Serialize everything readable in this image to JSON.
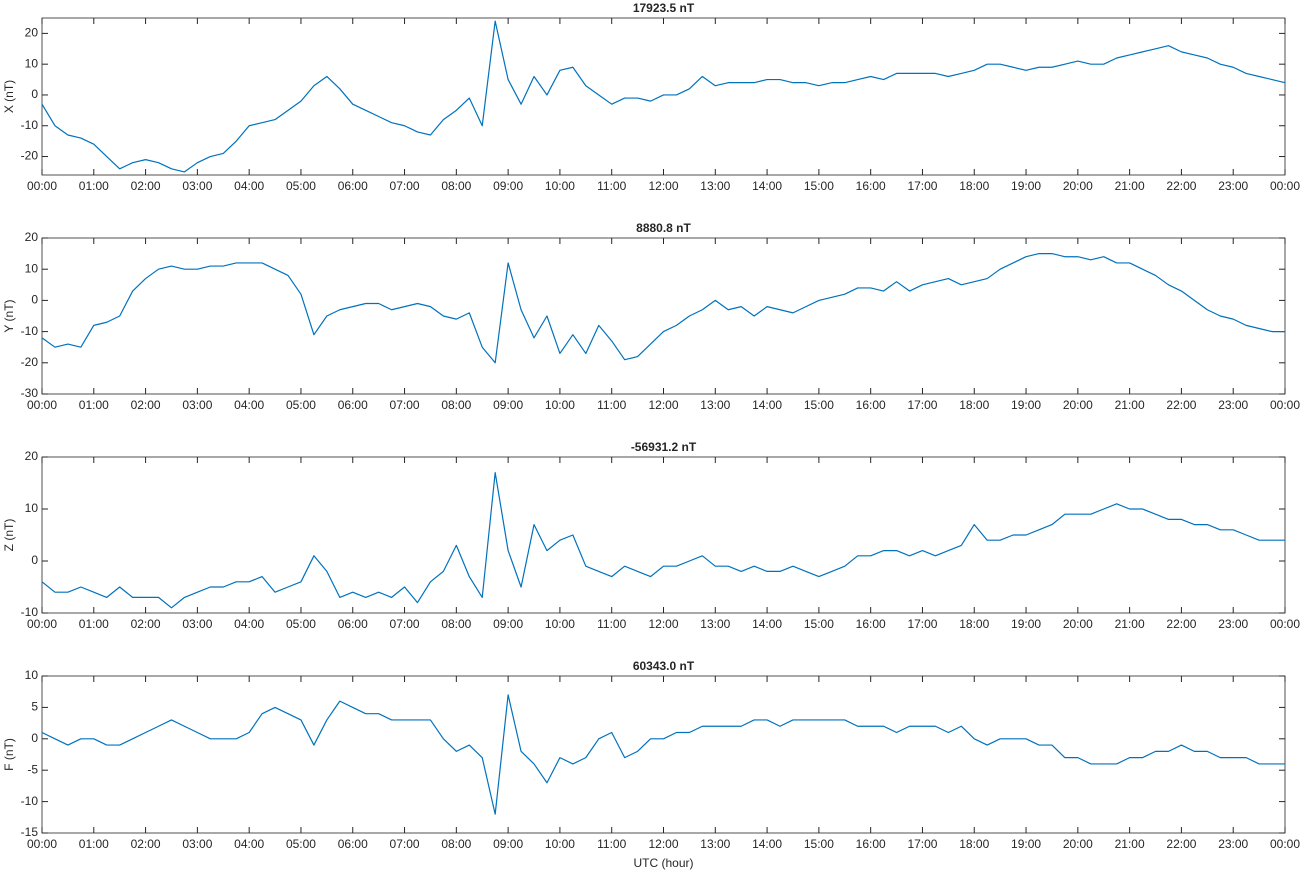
{
  "chart_data": [
    {
      "type": "line",
      "title": "17923.5 nT",
      "ylabel": "X (nT)",
      "color": "#0072bd",
      "xlim": [
        0,
        24
      ],
      "ylim": [
        -26,
        25
      ],
      "yticks": [
        -20,
        -10,
        0,
        10,
        20
      ],
      "xticks": [
        {
          "value": 0,
          "label": "00:00"
        },
        {
          "value": 1,
          "label": "01:00"
        },
        {
          "value": 2,
          "label": "02:00"
        },
        {
          "value": 3,
          "label": "03:00"
        },
        {
          "value": 4,
          "label": "04:00"
        },
        {
          "value": 5,
          "label": "05:00"
        },
        {
          "value": 6,
          "label": "06:00"
        },
        {
          "value": 7,
          "label": "07:00"
        },
        {
          "value": 8,
          "label": "08:00"
        },
        {
          "value": 9,
          "label": "09:00"
        },
        {
          "value": 10,
          "label": "10:00"
        },
        {
          "value": 11,
          "label": "11:00"
        },
        {
          "value": 12,
          "label": "12:00"
        },
        {
          "value": 13,
          "label": "13:00"
        },
        {
          "value": 14,
          "label": "14:00"
        },
        {
          "value": 15,
          "label": "15:00"
        },
        {
          "value": 16,
          "label": "16:00"
        },
        {
          "value": 17,
          "label": "17:00"
        },
        {
          "value": 18,
          "label": "18:00"
        },
        {
          "value": 19,
          "label": "19:00"
        },
        {
          "value": 20,
          "label": "20:00"
        },
        {
          "value": 21,
          "label": "21:00"
        },
        {
          "value": 22,
          "label": "22:00"
        },
        {
          "value": 23,
          "label": "23:00"
        },
        {
          "value": 24,
          "label": "00:00"
        }
      ],
      "x": [
        0,
        0.25,
        0.5,
        0.75,
        1,
        1.25,
        1.5,
        1.75,
        2,
        2.25,
        2.5,
        2.75,
        3,
        3.25,
        3.5,
        3.75,
        4,
        4.25,
        4.5,
        4.75,
        5,
        5.25,
        5.5,
        5.75,
        6,
        6.25,
        6.5,
        6.75,
        7,
        7.25,
        7.5,
        7.75,
        8,
        8.25,
        8.5,
        8.75,
        9,
        9.25,
        9.5,
        9.75,
        10,
        10.25,
        10.5,
        10.75,
        11,
        11.25,
        11.5,
        11.75,
        12,
        12.25,
        12.5,
        12.75,
        13,
        13.25,
        13.5,
        13.75,
        14,
        14.25,
        14.5,
        14.75,
        15,
        15.25,
        15.5,
        15.75,
        16,
        16.25,
        16.5,
        16.75,
        17,
        17.25,
        17.5,
        17.75,
        18,
        18.25,
        18.5,
        18.75,
        19,
        19.25,
        19.5,
        19.75,
        20,
        20.25,
        20.5,
        20.75,
        21,
        21.25,
        21.5,
        21.75,
        22,
        22.25,
        22.5,
        22.75,
        23,
        23.25,
        23.5,
        23.75,
        24
      ],
      "values": [
        -3,
        -10,
        -13,
        -14,
        -16,
        -20,
        -24,
        -22,
        -21,
        -22,
        -24,
        -25,
        -22,
        -20,
        -19,
        -15,
        -10,
        -9,
        -8,
        -5,
        -2,
        3,
        6,
        2,
        -3,
        -5,
        -7,
        -9,
        -10,
        -12,
        -13,
        -8,
        -5,
        -1,
        -10,
        24,
        5,
        -3,
        6,
        0,
        8,
        9,
        3,
        0,
        -3,
        -1,
        -1,
        -2,
        0,
        0,
        2,
        6,
        3,
        4,
        4,
        4,
        5,
        5,
        4,
        4,
        3,
        4,
        4,
        5,
        6,
        5,
        7,
        7,
        7,
        7,
        6,
        7,
        8,
        10,
        10,
        9,
        8,
        9,
        9,
        10,
        11,
        10,
        10,
        12,
        13,
        14,
        15,
        16,
        14,
        13,
        12,
        10,
        9,
        7,
        6,
        5,
        4
      ]
    },
    {
      "type": "line",
      "title": "8880.8 nT",
      "ylabel": "Y (nT)",
      "color": "#0072bd",
      "xlim": [
        0,
        24
      ],
      "ylim": [
        -30,
        20
      ],
      "yticks": [
        -30,
        -20,
        -10,
        0,
        10,
        20
      ],
      "xticks": [
        {
          "value": 0,
          "label": "00:00"
        },
        {
          "value": 1,
          "label": "01:00"
        },
        {
          "value": 2,
          "label": "02:00"
        },
        {
          "value": 3,
          "label": "03:00"
        },
        {
          "value": 4,
          "label": "04:00"
        },
        {
          "value": 5,
          "label": "05:00"
        },
        {
          "value": 6,
          "label": "06:00"
        },
        {
          "value": 7,
          "label": "07:00"
        },
        {
          "value": 8,
          "label": "08:00"
        },
        {
          "value": 9,
          "label": "09:00"
        },
        {
          "value": 10,
          "label": "10:00"
        },
        {
          "value": 11,
          "label": "11:00"
        },
        {
          "value": 12,
          "label": "12:00"
        },
        {
          "value": 13,
          "label": "13:00"
        },
        {
          "value": 14,
          "label": "14:00"
        },
        {
          "value": 15,
          "label": "15:00"
        },
        {
          "value": 16,
          "label": "16:00"
        },
        {
          "value": 17,
          "label": "17:00"
        },
        {
          "value": 18,
          "label": "18:00"
        },
        {
          "value": 19,
          "label": "19:00"
        },
        {
          "value": 20,
          "label": "20:00"
        },
        {
          "value": 21,
          "label": "21:00"
        },
        {
          "value": 22,
          "label": "22:00"
        },
        {
          "value": 23,
          "label": "23:00"
        },
        {
          "value": 24,
          "label": "00:00"
        }
      ],
      "x": [
        0,
        0.25,
        0.5,
        0.75,
        1,
        1.25,
        1.5,
        1.75,
        2,
        2.25,
        2.5,
        2.75,
        3,
        3.25,
        3.5,
        3.75,
        4,
        4.25,
        4.5,
        4.75,
        5,
        5.25,
        5.5,
        5.75,
        6,
        6.25,
        6.5,
        6.75,
        7,
        7.25,
        7.5,
        7.75,
        8,
        8.25,
        8.5,
        8.75,
        9,
        9.25,
        9.5,
        9.75,
        10,
        10.25,
        10.5,
        10.75,
        11,
        11.25,
        11.5,
        11.75,
        12,
        12.25,
        12.5,
        12.75,
        13,
        13.25,
        13.5,
        13.75,
        14,
        14.25,
        14.5,
        14.75,
        15,
        15.25,
        15.5,
        15.75,
        16,
        16.25,
        16.5,
        16.75,
        17,
        17.25,
        17.5,
        17.75,
        18,
        18.25,
        18.5,
        18.75,
        19,
        19.25,
        19.5,
        19.75,
        20,
        20.25,
        20.5,
        20.75,
        21,
        21.25,
        21.5,
        21.75,
        22,
        22.25,
        22.5,
        22.75,
        23,
        23.25,
        23.5,
        23.75,
        24
      ],
      "values": [
        -12,
        -15,
        -14,
        -15,
        -8,
        -7,
        -5,
        3,
        7,
        10,
        11,
        10,
        10,
        11,
        11,
        12,
        12,
        12,
        10,
        8,
        2,
        -11,
        -5,
        -3,
        -2,
        -1,
        -1,
        -3,
        -2,
        -1,
        -2,
        -5,
        -6,
        -4,
        -15,
        -20,
        12,
        -3,
        -12,
        -5,
        -17,
        -11,
        -17,
        -8,
        -13,
        -19,
        -18,
        -14,
        -10,
        -8,
        -5,
        -3,
        0,
        -3,
        -2,
        -5,
        -2,
        -3,
        -4,
        -2,
        0,
        1,
        2,
        4,
        4,
        3,
        6,
        3,
        5,
        6,
        7,
        5,
        6,
        7,
        10,
        12,
        14,
        15,
        15,
        14,
        14,
        13,
        14,
        12,
        12,
        10,
        8,
        5,
        3,
        0,
        -3,
        -5,
        -6,
        -8,
        -9,
        -10,
        -10
      ]
    },
    {
      "type": "line",
      "title": "-56931.2 nT",
      "ylabel": "Z (nT)",
      "color": "#0072bd",
      "xlim": [
        0,
        24
      ],
      "ylim": [
        -10,
        20
      ],
      "yticks": [
        -10,
        0,
        10,
        20
      ],
      "xticks": [
        {
          "value": 0,
          "label": "00:00"
        },
        {
          "value": 1,
          "label": "01:00"
        },
        {
          "value": 2,
          "label": "02:00"
        },
        {
          "value": 3,
          "label": "03:00"
        },
        {
          "value": 4,
          "label": "04:00"
        },
        {
          "value": 5,
          "label": "05:00"
        },
        {
          "value": 6,
          "label": "06:00"
        },
        {
          "value": 7,
          "label": "07:00"
        },
        {
          "value": 8,
          "label": "08:00"
        },
        {
          "value": 9,
          "label": "09:00"
        },
        {
          "value": 10,
          "label": "10:00"
        },
        {
          "value": 11,
          "label": "11:00"
        },
        {
          "value": 12,
          "label": "12:00"
        },
        {
          "value": 13,
          "label": "13:00"
        },
        {
          "value": 14,
          "label": "14:00"
        },
        {
          "value": 15,
          "label": "15:00"
        },
        {
          "value": 16,
          "label": "16:00"
        },
        {
          "value": 17,
          "label": "17:00"
        },
        {
          "value": 18,
          "label": "18:00"
        },
        {
          "value": 19,
          "label": "19:00"
        },
        {
          "value": 20,
          "label": "20:00"
        },
        {
          "value": 21,
          "label": "21:00"
        },
        {
          "value": 22,
          "label": "22:00"
        },
        {
          "value": 23,
          "label": "23:00"
        },
        {
          "value": 24,
          "label": "00:00"
        }
      ],
      "x": [
        0,
        0.25,
        0.5,
        0.75,
        1,
        1.25,
        1.5,
        1.75,
        2,
        2.25,
        2.5,
        2.75,
        3,
        3.25,
        3.5,
        3.75,
        4,
        4.25,
        4.5,
        4.75,
        5,
        5.25,
        5.5,
        5.75,
        6,
        6.25,
        6.5,
        6.75,
        7,
        7.25,
        7.5,
        7.75,
        8,
        8.25,
        8.5,
        8.75,
        9,
        9.25,
        9.5,
        9.75,
        10,
        10.25,
        10.5,
        10.75,
        11,
        11.25,
        11.5,
        11.75,
        12,
        12.25,
        12.5,
        12.75,
        13,
        13.25,
        13.5,
        13.75,
        14,
        14.25,
        14.5,
        14.75,
        15,
        15.25,
        15.5,
        15.75,
        16,
        16.25,
        16.5,
        16.75,
        17,
        17.25,
        17.5,
        17.75,
        18,
        18.25,
        18.5,
        18.75,
        19,
        19.25,
        19.5,
        19.75,
        20,
        20.25,
        20.5,
        20.75,
        21,
        21.25,
        21.5,
        21.75,
        22,
        22.25,
        22.5,
        22.75,
        23,
        23.25,
        23.5,
        23.75,
        24
      ],
      "values": [
        -4,
        -6,
        -6,
        -5,
        -6,
        -7,
        -5,
        -7,
        -7,
        -7,
        -9,
        -7,
        -6,
        -5,
        -5,
        -4,
        -4,
        -3,
        -6,
        -5,
        -4,
        1,
        -2,
        -7,
        -6,
        -7,
        -6,
        -7,
        -5,
        -8,
        -4,
        -2,
        3,
        -3,
        -7,
        17,
        2,
        -5,
        7,
        2,
        4,
        5,
        -1,
        -2,
        -3,
        -1,
        -2,
        -3,
        -1,
        -1,
        0,
        1,
        -1,
        -1,
        -2,
        -1,
        -2,
        -2,
        -1,
        -2,
        -3,
        -2,
        -1,
        1,
        1,
        2,
        2,
        1,
        2,
        1,
        2,
        3,
        7,
        4,
        4,
        5,
        5,
        6,
        7,
        9,
        9,
        9,
        10,
        11,
        10,
        10,
        9,
        8,
        8,
        7,
        7,
        6,
        6,
        5,
        4,
        4,
        4
      ]
    },
    {
      "type": "line",
      "title": "60343.0 nT",
      "ylabel": "F (nT)",
      "xlabel": "UTC (hour)",
      "color": "#0072bd",
      "xlim": [
        0,
        24
      ],
      "ylim": [
        -15,
        10
      ],
      "yticks": [
        -15,
        -10,
        -5,
        0,
        5,
        10
      ],
      "xticks": [
        {
          "value": 0,
          "label": "00:00"
        },
        {
          "value": 1,
          "label": "01:00"
        },
        {
          "value": 2,
          "label": "02:00"
        },
        {
          "value": 3,
          "label": "03:00"
        },
        {
          "value": 4,
          "label": "04:00"
        },
        {
          "value": 5,
          "label": "05:00"
        },
        {
          "value": 6,
          "label": "06:00"
        },
        {
          "value": 7,
          "label": "07:00"
        },
        {
          "value": 8,
          "label": "08:00"
        },
        {
          "value": 9,
          "label": "09:00"
        },
        {
          "value": 10,
          "label": "10:00"
        },
        {
          "value": 11,
          "label": "11:00"
        },
        {
          "value": 12,
          "label": "12:00"
        },
        {
          "value": 13,
          "label": "13:00"
        },
        {
          "value": 14,
          "label": "14:00"
        },
        {
          "value": 15,
          "label": "15:00"
        },
        {
          "value": 16,
          "label": "16:00"
        },
        {
          "value": 17,
          "label": "17:00"
        },
        {
          "value": 18,
          "label": "18:00"
        },
        {
          "value": 19,
          "label": "19:00"
        },
        {
          "value": 20,
          "label": "20:00"
        },
        {
          "value": 21,
          "label": "21:00"
        },
        {
          "value": 22,
          "label": "22:00"
        },
        {
          "value": 23,
          "label": "23:00"
        },
        {
          "value": 24,
          "label": "00:00"
        }
      ],
      "x": [
        0,
        0.25,
        0.5,
        0.75,
        1,
        1.25,
        1.5,
        1.75,
        2,
        2.25,
        2.5,
        2.75,
        3,
        3.25,
        3.5,
        3.75,
        4,
        4.25,
        4.5,
        4.75,
        5,
        5.25,
        5.5,
        5.75,
        6,
        6.25,
        6.5,
        6.75,
        7,
        7.25,
        7.5,
        7.75,
        8,
        8.25,
        8.5,
        8.75,
        9,
        9.25,
        9.5,
        9.75,
        10,
        10.25,
        10.5,
        10.75,
        11,
        11.25,
        11.5,
        11.75,
        12,
        12.25,
        12.5,
        12.75,
        13,
        13.25,
        13.5,
        13.75,
        14,
        14.25,
        14.5,
        14.75,
        15,
        15.25,
        15.5,
        15.75,
        16,
        16.25,
        16.5,
        16.75,
        17,
        17.25,
        17.5,
        17.75,
        18,
        18.25,
        18.5,
        18.75,
        19,
        19.25,
        19.5,
        19.75,
        20,
        20.25,
        20.5,
        20.75,
        21,
        21.25,
        21.5,
        21.75,
        22,
        22.25,
        22.5,
        22.75,
        23,
        23.25,
        23.5,
        23.75,
        24
      ],
      "values": [
        1,
        0,
        -1,
        0,
        0,
        -1,
        -1,
        0,
        1,
        2,
        3,
        2,
        1,
        0,
        0,
        0,
        1,
        4,
        5,
        4,
        3,
        -1,
        3,
        6,
        5,
        4,
        4,
        3,
        3,
        3,
        3,
        0,
        -2,
        -1,
        -3,
        -12,
        7,
        -2,
        -4,
        -7,
        -3,
        -4,
        -3,
        0,
        1,
        -3,
        -2,
        0,
        0,
        1,
        1,
        2,
        2,
        2,
        2,
        3,
        3,
        2,
        3,
        3,
        3,
        3,
        3,
        2,
        2,
        2,
        1,
        2,
        2,
        2,
        1,
        2,
        0,
        -1,
        0,
        0,
        0,
        -1,
        -1,
        -3,
        -3,
        -4,
        -4,
        -4,
        -3,
        -3,
        -2,
        -2,
        -1,
        -2,
        -2,
        -3,
        -3,
        -3,
        -4,
        -4,
        -4
      ]
    }
  ]
}
